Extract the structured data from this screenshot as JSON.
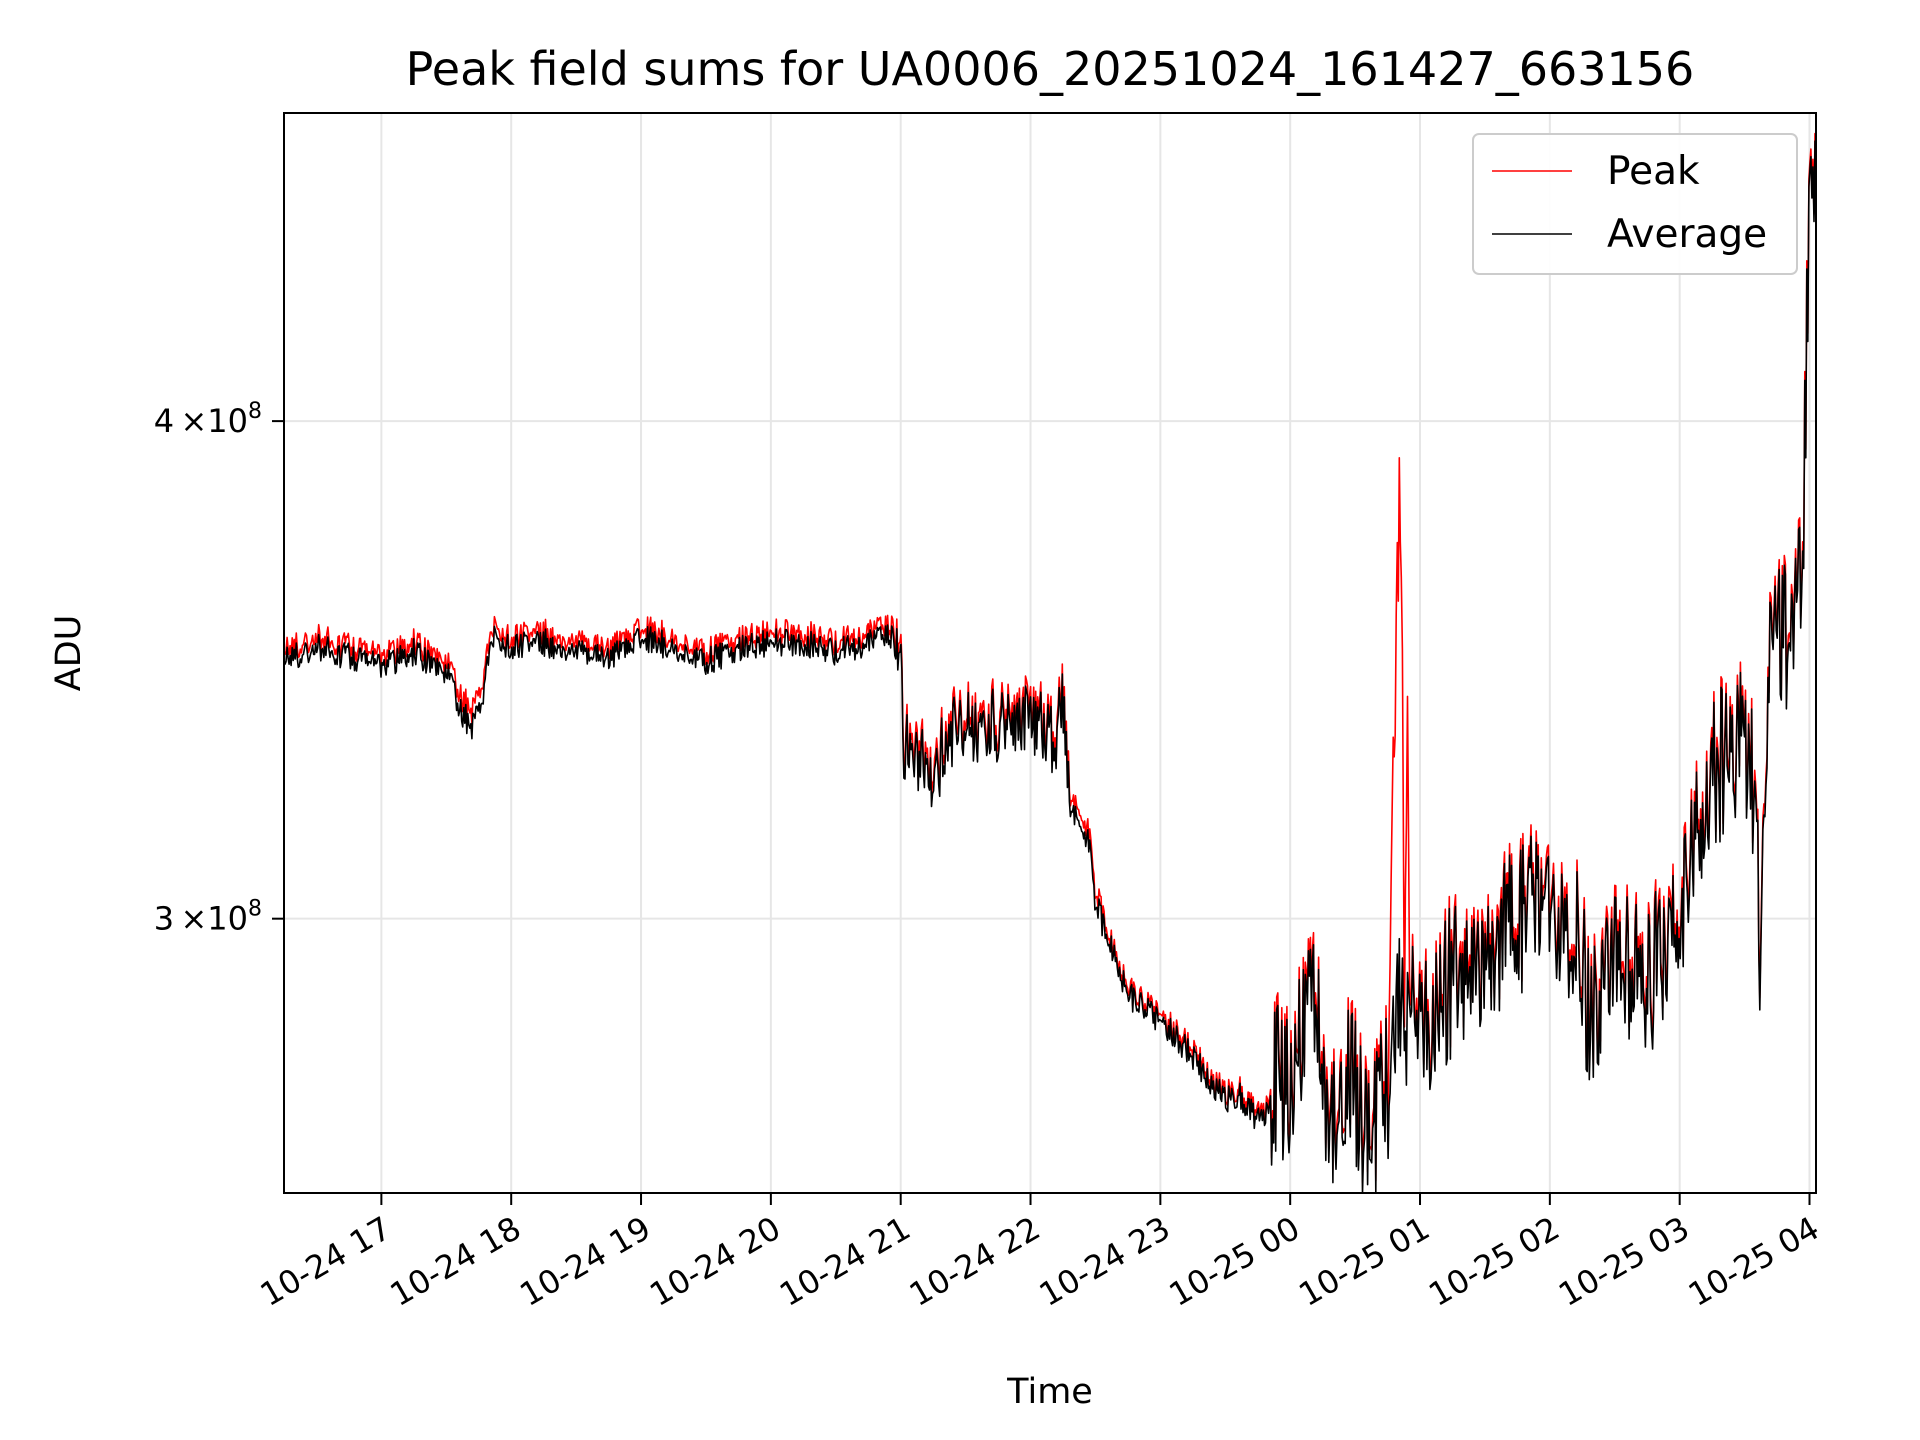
{
  "chart_data": {
    "type": "line",
    "title": "Peak field sums for UA0006_20251024_161427_663156",
    "xlabel": "Time",
    "ylabel": "ADU",
    "yscale": "log",
    "grid": true,
    "legend_position": "top-right",
    "x_unit": "hours since 10-24 16:00",
    "xlim": [
      0.25,
      12.05
    ],
    "ylim": [
      256000000.0,
      478000000.0
    ],
    "x_tick_values": [
      1,
      2,
      3,
      4,
      5,
      6,
      7,
      8,
      9,
      10,
      11,
      12
    ],
    "x_tick_labels": [
      "10-24 17",
      "10-24 18",
      "10-24 19",
      "10-24 20",
      "10-24 21",
      "10-24 22",
      "10-24 23",
      "10-25 00",
      "10-25 01",
      "10-25 02",
      "10-25 03",
      "10-25 04"
    ],
    "y_ticks": [
      {
        "value": 300000000.0,
        "mantissa": "3",
        "exponent": "8"
      },
      {
        "value": 400000000.0,
        "mantissa": "4",
        "exponent": "8"
      }
    ],
    "y_tick_times": "×10",
    "series": [
      {
        "name": "Peak",
        "color": "#ff0000",
        "x": [
          0.25,
          0.5,
          0.75,
          1.0,
          1.25,
          1.5,
          1.62,
          1.7,
          1.78,
          1.85,
          2.0,
          2.25,
          2.5,
          2.75,
          3.0,
          3.25,
          3.45,
          3.5,
          3.75,
          4.0,
          4.25,
          4.5,
          4.9,
          5.0,
          5.02,
          5.1,
          5.2,
          5.3,
          5.45,
          5.6,
          5.8,
          6.0,
          6.2,
          6.25,
          6.3,
          6.45,
          6.5,
          6.6,
          6.75,
          7.0,
          7.25,
          7.5,
          7.6,
          7.75,
          7.85,
          7.9,
          8.0,
          8.15,
          8.3,
          8.45,
          8.6,
          8.75,
          8.85,
          8.88,
          8.9,
          8.92,
          9.0,
          9.25,
          9.5,
          9.75,
          10.0,
          10.25,
          10.3,
          10.5,
          10.75,
          11.0,
          11.25,
          11.5,
          11.6,
          11.62,
          11.7,
          11.75,
          11.85,
          11.9,
          11.95,
          12.0,
          12.05
        ],
        "y": [
          350000000.0,
          353000000.0,
          351000000.0,
          349000000.0,
          352000000.0,
          348000000.0,
          341000000.0,
          338000000.0,
          344000000.0,
          355000000.0,
          353000000.0,
          354000000.0,
          352000000.0,
          351000000.0,
          355000000.0,
          353000000.0,
          351000000.0,
          350000000.0,
          353000000.0,
          354000000.0,
          354000000.0,
          352000000.0,
          355000000.0,
          354000000.0,
          332000000.0,
          335000000.0,
          327000000.0,
          331000000.0,
          339000000.0,
          337000000.0,
          338000000.0,
          339000000.0,
          335000000.0,
          343000000.0,
          322000000.0,
          315000000.0,
          305000000.0,
          297000000.0,
          288000000.0,
          284000000.0,
          278000000.0,
          271000000.0,
          272000000.0,
          268000000.0,
          270000000.0,
          276000000.0,
          272000000.0,
          290000000.0,
          270000000.0,
          278000000.0,
          266000000.0,
          274000000.0,
          392000000.0,
          285000000.0,
          345000000.0,
          288000000.0,
          282000000.0,
          292000000.0,
          295000000.0,
          302000000.0,
          306000000.0,
          297000000.0,
          285000000.0,
          295000000.0,
          290000000.0,
          305000000.0,
          328000000.0,
          337000000.0,
          320000000.0,
          288000000.0,
          357000000.0,
          354000000.0,
          356000000.0,
          362000000.0,
          378000000.0,
          452000000.0,
          462000000.0
        ]
      },
      {
        "name": "Average",
        "color": "#000000",
        "x": [
          0.25,
          0.5,
          0.75,
          1.0,
          1.25,
          1.5,
          1.62,
          1.7,
          1.78,
          1.85,
          2.0,
          2.25,
          2.5,
          2.75,
          3.0,
          3.25,
          3.45,
          3.5,
          3.75,
          4.0,
          4.25,
          4.5,
          4.9,
          5.0,
          5.02,
          5.1,
          5.2,
          5.3,
          5.45,
          5.6,
          5.8,
          6.0,
          6.2,
          6.25,
          6.3,
          6.45,
          6.5,
          6.6,
          6.75,
          7.0,
          7.25,
          7.5,
          7.6,
          7.75,
          7.85,
          7.9,
          8.0,
          8.15,
          8.3,
          8.45,
          8.6,
          8.75,
          8.85,
          8.88,
          8.9,
          8.92,
          9.0,
          9.25,
          9.5,
          9.75,
          10.0,
          10.25,
          10.3,
          10.5,
          10.75,
          11.0,
          11.25,
          11.5,
          11.6,
          11.62,
          11.7,
          11.75,
          11.85,
          11.9,
          11.95,
          12.0,
          12.05
        ],
        "y": [
          348000000.0,
          351000000.0,
          349000000.0,
          347000000.0,
          350000000.0,
          346000000.0,
          338000000.0,
          335000000.0,
          341000000.0,
          353000000.0,
          351000000.0,
          352000000.0,
          350000000.0,
          349000000.0,
          353000000.0,
          351000000.0,
          349000000.0,
          348000000.0,
          351000000.0,
          352000000.0,
          352000000.0,
          350000000.0,
          353000000.0,
          352000000.0,
          330000000.0,
          333000000.0,
          325000000.0,
          329000000.0,
          337000000.0,
          335000000.0,
          336000000.0,
          337000000.0,
          333000000.0,
          341000000.0,
          320000000.0,
          313000000.0,
          303000000.0,
          296000000.0,
          287000000.0,
          283000000.0,
          277000000.0,
          270000000.0,
          271000000.0,
          267000000.0,
          269000000.0,
          274000000.0,
          270000000.0,
          288000000.0,
          268000000.0,
          276000000.0,
          264000000.0,
          272000000.0,
          290000000.0,
          282000000.0,
          286000000.0,
          286000000.0,
          280000000.0,
          290000000.0,
          293000000.0,
          300000000.0,
          304000000.0,
          295000000.0,
          283000000.0,
          293000000.0,
          288000000.0,
          303000000.0,
          326000000.0,
          335000000.0,
          318000000.0,
          286000000.0,
          355000000.0,
          352000000.0,
          354000000.0,
          360000000.0,
          376000000.0,
          450000000.0,
          460000000.0
        ]
      }
    ]
  }
}
